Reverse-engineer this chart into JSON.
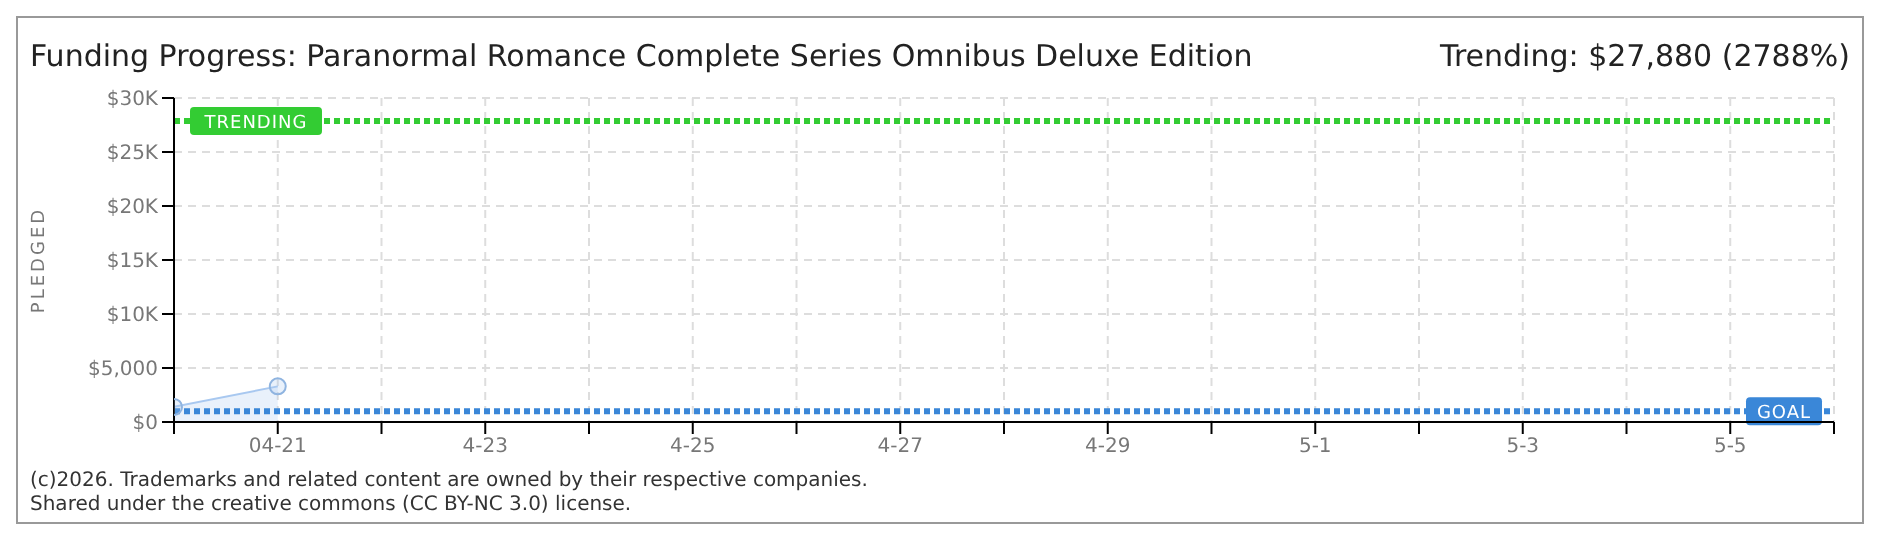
{
  "chart_data": {
    "type": "area",
    "title": "Funding Progress: Paranormal Romance Complete Series Omnibus Deluxe Edition",
    "ylabel": "PLEDGED",
    "x": [
      "--04-20",
      "--04-21"
    ],
    "series": [
      {
        "color": "#a8c8f0",
        "values": [
          1400,
          3300
        ]
      }
    ],
    "xlim": [
      "--04-20",
      "--05-06"
    ],
    "xticks": [
      {
        "value": "--04-20",
        "label": null
      },
      {
        "value": "--04-21",
        "label": "04-21"
      },
      {
        "value": "--04-22",
        "label": null
      },
      {
        "value": "--04-23",
        "label": "4-23"
      },
      {
        "value": "--04-24",
        "label": null
      },
      {
        "value": "--04-25",
        "label": "4-25"
      },
      {
        "value": "--04-26",
        "label": null
      },
      {
        "value": "--04-27",
        "label": "4-27"
      },
      {
        "value": "--04-28",
        "label": null
      },
      {
        "value": "--04-29",
        "label": "4-29"
      },
      {
        "value": "--04-30",
        "label": null
      },
      {
        "value": "--05-01",
        "label": "5-1"
      },
      {
        "value": "--05-02",
        "label": null
      },
      {
        "value": "--05-03",
        "label": "5-3"
      },
      {
        "value": "--05-04",
        "label": null
      },
      {
        "value": "--05-05",
        "label": "5-5"
      },
      {
        "value": "--05-06",
        "label": null
      }
    ],
    "ylim": [
      0,
      30000
    ],
    "yticks": [
      {
        "value": 0,
        "label": "$0"
      },
      {
        "value": 5000,
        "label": "$5,000"
      },
      {
        "value": 10000,
        "label": "$10K"
      },
      {
        "value": 15000,
        "label": "$15K"
      },
      {
        "value": 20000,
        "label": "$20K"
      },
      {
        "value": 25000,
        "label": "$25K"
      },
      {
        "value": 30000,
        "label": "$30K"
      }
    ],
    "grid": true,
    "marker": "circle",
    "ref_lines": [
      {
        "axis": "y",
        "value": 27880,
        "label": "TRENDING",
        "color": "#33cc33",
        "line_style": "dotted"
      },
      {
        "axis": "y",
        "value": 1000,
        "label": "GOAL",
        "color": "#3a87d8",
        "line_style": "dotted"
      }
    ],
    "annotations": [
      "Trending: $27,880 (2788%)",
      "(c)2026. Trademarks and related content are owned by their respective companies.",
      "Shared under the creative commons (CC BY-NC 3.0) license."
    ]
  }
}
